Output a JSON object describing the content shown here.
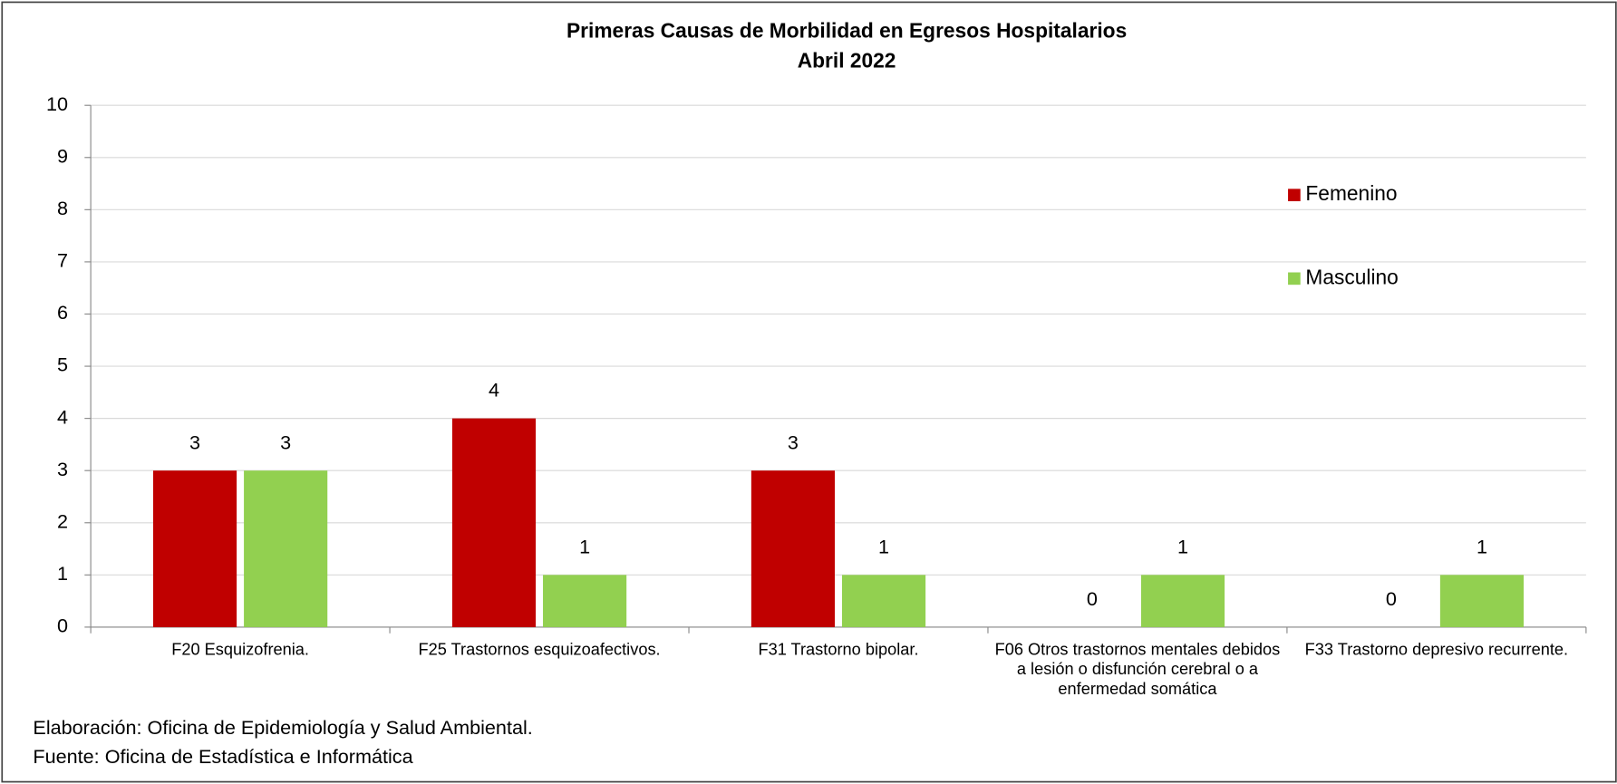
{
  "chart_data": {
    "type": "bar",
    "title": "Primeras Causas de Morbilidad en Egresos Hospitalarios",
    "subtitle": "Abril 2022",
    "categories": [
      "F20 Esquizofrenia.",
      "F25 Trastornos esquizoafectivos.",
      "F31 Trastorno bipolar.",
      "F06 Otros trastornos mentales debidos a lesión o disfunción cerebral o a enfermedad somática",
      "F33 Trastorno depresivo recurrente."
    ],
    "series": [
      {
        "name": "Femenino",
        "color": "#c00000",
        "values": [
          3,
          4,
          3,
          0,
          0
        ]
      },
      {
        "name": "Masculino",
        "color": "#92d050",
        "values": [
          3,
          1,
          1,
          1,
          1
        ]
      }
    ],
    "ylim": [
      0,
      10
    ],
    "yticks": [
      0,
      1,
      2,
      3,
      4,
      5,
      6,
      7,
      8,
      9,
      10
    ],
    "grid": true,
    "legend": "right",
    "notes": [
      "Elaboración: Oficina de Epidemiología y Salud Ambiental.",
      "Fuente:  Oficina de Estadística e Informática"
    ]
  }
}
